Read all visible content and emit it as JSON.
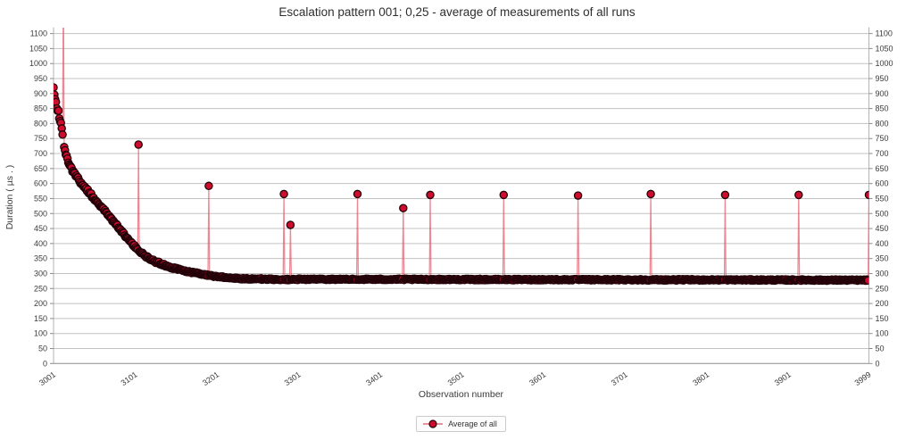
{
  "chart_data": {
    "type": "line",
    "title": "Escalation pattern 001; 0,25 - average of measurements of all runs",
    "xlabel": "Observation number",
    "ylabel": "Duration ( µs . )",
    "xlim": [
      3001,
      3999
    ],
    "ylim": [
      0,
      1100
    ],
    "ytick_step": 50,
    "xticks": [
      3001,
      3101,
      3201,
      3301,
      3401,
      3501,
      3601,
      3701,
      3801,
      3901,
      3999
    ],
    "grid": true,
    "dual_y_axis_labels": true,
    "legend_position": "bottom-center",
    "series": {
      "name": "Average of all",
      "decay_samples": [
        [
          3001,
          925
        ],
        [
          3002,
          895
        ],
        [
          3003,
          878
        ],
        [
          3004,
          866
        ],
        [
          3005,
          852
        ],
        [
          3007,
          840
        ],
        [
          3008,
          818
        ],
        [
          3010,
          800
        ],
        [
          3011,
          786
        ],
        [
          3012,
          765
        ],
        [
          3013,
          748
        ],
        [
          3014,
          725
        ],
        [
          3015,
          705
        ],
        [
          3016,
          698
        ],
        [
          3018,
          683
        ],
        [
          3020,
          668
        ],
        [
          3022,
          655
        ],
        [
          3024,
          645
        ],
        [
          3026,
          636
        ],
        [
          3028,
          627
        ],
        [
          3031,
          616
        ],
        [
          3034,
          605
        ],
        [
          3037,
          595
        ],
        [
          3040,
          585
        ],
        [
          3043,
          575
        ],
        [
          3046,
          565
        ],
        [
          3049,
          556
        ],
        [
          3052,
          547
        ],
        [
          3055,
          538
        ],
        [
          3058,
          528
        ],
        [
          3061,
          518
        ],
        [
          3064,
          508
        ],
        [
          3067,
          498
        ],
        [
          3070,
          488
        ],
        [
          3073,
          478
        ],
        [
          3076,
          468
        ],
        [
          3079,
          458
        ],
        [
          3082,
          448
        ],
        [
          3085,
          438
        ],
        [
          3088,
          428
        ],
        [
          3091,
          418
        ],
        [
          3094,
          408
        ],
        [
          3097,
          399
        ],
        [
          3100,
          391
        ],
        [
          3103,
          383
        ],
        [
          3106,
          375
        ],
        [
          3109,
          368
        ],
        [
          3112,
          361
        ],
        [
          3116,
          354
        ],
        [
          3120,
          348
        ],
        [
          3124,
          342
        ],
        [
          3128,
          337
        ],
        [
          3133,
          332
        ],
        [
          3138,
          327
        ],
        [
          3144,
          322
        ],
        [
          3150,
          317
        ],
        [
          3157,
          312
        ],
        [
          3164,
          307
        ],
        [
          3172,
          303
        ],
        [
          3180,
          299
        ],
        [
          3189,
          295
        ],
        [
          3198,
          291
        ],
        [
          3208,
          288
        ],
        [
          3220,
          285
        ],
        [
          3233,
          283
        ],
        [
          3248,
          282
        ],
        [
          3264,
          281
        ],
        [
          3282,
          280
        ],
        [
          3300,
          280
        ]
      ],
      "noise_bands": [
        [
          3060,
          6
        ],
        [
          3150,
          4
        ],
        [
          3300,
          2.5
        ]
      ],
      "baseline": {
        "from": 3301,
        "to": 3999,
        "start": 281,
        "end": 278,
        "noise": 2.2
      },
      "spike_points": [
        [
          3105,
          730
        ],
        [
          3191,
          592
        ],
        [
          3283,
          565
        ],
        [
          3291,
          462
        ],
        [
          3373,
          565
        ],
        [
          3429,
          518
        ],
        [
          3462,
          562
        ],
        [
          3552,
          562
        ],
        [
          3643,
          560
        ],
        [
          3732,
          565
        ],
        [
          3823,
          562
        ],
        [
          3913,
          562
        ],
        [
          3999,
          562
        ]
      ],
      "offscale_spike": {
        "x": 3013,
        "value_exceeds": 1100,
        "render_value": 1290
      }
    },
    "colors": {
      "marker_fill": "#cf0b2e",
      "marker_stroke": "#230309",
      "line": "#e25061",
      "grid": "#c3c3c3",
      "axis": "#b3b3b3",
      "baseline_axis": "#8a8a8a",
      "text": "#3a3a3a"
    }
  }
}
